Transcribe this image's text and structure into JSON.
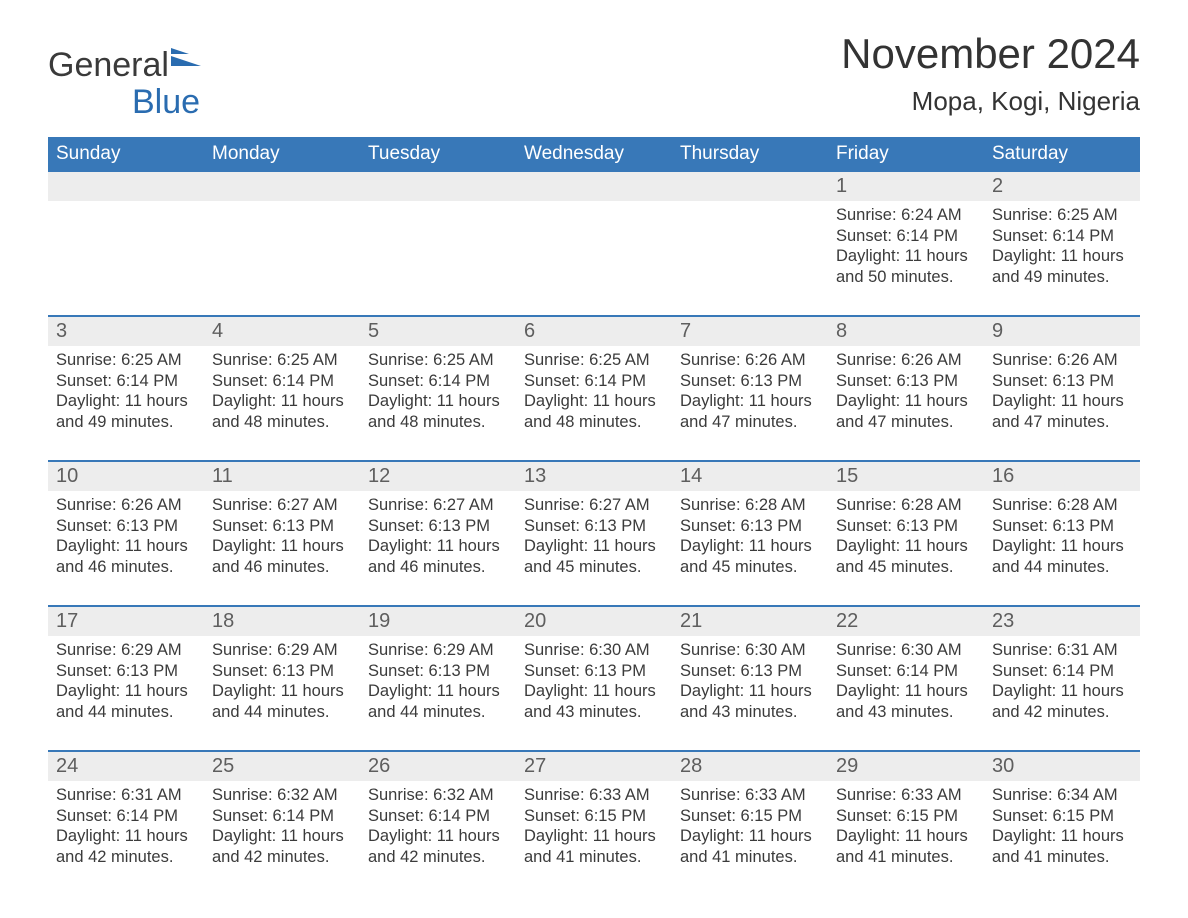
{
  "logo": {
    "word1": "General",
    "word2": "Blue",
    "accent_color": "#2a6cb0"
  },
  "title": "November 2024",
  "location": "Mopa, Kogi, Nigeria",
  "colors": {
    "header_bg": "#3878b8",
    "header_text": "#ffffff",
    "daynum_bg": "#ededed",
    "daynum_text": "#5e5e5e",
    "body_text": "#3b3b3b",
    "rule": "#3878b8",
    "page_bg": "#ffffff"
  },
  "font": {
    "family": "Arial",
    "title_size_pt": 32,
    "location_size_pt": 20,
    "weekday_size_pt": 14,
    "daynum_size_pt": 15,
    "body_size_pt": 12
  },
  "weekdays": [
    "Sunday",
    "Monday",
    "Tuesday",
    "Wednesday",
    "Thursday",
    "Friday",
    "Saturday"
  ],
  "weeks": [
    [
      null,
      null,
      null,
      null,
      null,
      {
        "n": "1",
        "sunrise": "Sunrise: 6:24 AM",
        "sunset": "Sunset: 6:14 PM",
        "day1": "Daylight: 11 hours",
        "day2": "and 50 minutes."
      },
      {
        "n": "2",
        "sunrise": "Sunrise: 6:25 AM",
        "sunset": "Sunset: 6:14 PM",
        "day1": "Daylight: 11 hours",
        "day2": "and 49 minutes."
      }
    ],
    [
      {
        "n": "3",
        "sunrise": "Sunrise: 6:25 AM",
        "sunset": "Sunset: 6:14 PM",
        "day1": "Daylight: 11 hours",
        "day2": "and 49 minutes."
      },
      {
        "n": "4",
        "sunrise": "Sunrise: 6:25 AM",
        "sunset": "Sunset: 6:14 PM",
        "day1": "Daylight: 11 hours",
        "day2": "and 48 minutes."
      },
      {
        "n": "5",
        "sunrise": "Sunrise: 6:25 AM",
        "sunset": "Sunset: 6:14 PM",
        "day1": "Daylight: 11 hours",
        "day2": "and 48 minutes."
      },
      {
        "n": "6",
        "sunrise": "Sunrise: 6:25 AM",
        "sunset": "Sunset: 6:14 PM",
        "day1": "Daylight: 11 hours",
        "day2": "and 48 minutes."
      },
      {
        "n": "7",
        "sunrise": "Sunrise: 6:26 AM",
        "sunset": "Sunset: 6:13 PM",
        "day1": "Daylight: 11 hours",
        "day2": "and 47 minutes."
      },
      {
        "n": "8",
        "sunrise": "Sunrise: 6:26 AM",
        "sunset": "Sunset: 6:13 PM",
        "day1": "Daylight: 11 hours",
        "day2": "and 47 minutes."
      },
      {
        "n": "9",
        "sunrise": "Sunrise: 6:26 AM",
        "sunset": "Sunset: 6:13 PM",
        "day1": "Daylight: 11 hours",
        "day2": "and 47 minutes."
      }
    ],
    [
      {
        "n": "10",
        "sunrise": "Sunrise: 6:26 AM",
        "sunset": "Sunset: 6:13 PM",
        "day1": "Daylight: 11 hours",
        "day2": "and 46 minutes."
      },
      {
        "n": "11",
        "sunrise": "Sunrise: 6:27 AM",
        "sunset": "Sunset: 6:13 PM",
        "day1": "Daylight: 11 hours",
        "day2": "and 46 minutes."
      },
      {
        "n": "12",
        "sunrise": "Sunrise: 6:27 AM",
        "sunset": "Sunset: 6:13 PM",
        "day1": "Daylight: 11 hours",
        "day2": "and 46 minutes."
      },
      {
        "n": "13",
        "sunrise": "Sunrise: 6:27 AM",
        "sunset": "Sunset: 6:13 PM",
        "day1": "Daylight: 11 hours",
        "day2": "and 45 minutes."
      },
      {
        "n": "14",
        "sunrise": "Sunrise: 6:28 AM",
        "sunset": "Sunset: 6:13 PM",
        "day1": "Daylight: 11 hours",
        "day2": "and 45 minutes."
      },
      {
        "n": "15",
        "sunrise": "Sunrise: 6:28 AM",
        "sunset": "Sunset: 6:13 PM",
        "day1": "Daylight: 11 hours",
        "day2": "and 45 minutes."
      },
      {
        "n": "16",
        "sunrise": "Sunrise: 6:28 AM",
        "sunset": "Sunset: 6:13 PM",
        "day1": "Daylight: 11 hours",
        "day2": "and 44 minutes."
      }
    ],
    [
      {
        "n": "17",
        "sunrise": "Sunrise: 6:29 AM",
        "sunset": "Sunset: 6:13 PM",
        "day1": "Daylight: 11 hours",
        "day2": "and 44 minutes."
      },
      {
        "n": "18",
        "sunrise": "Sunrise: 6:29 AM",
        "sunset": "Sunset: 6:13 PM",
        "day1": "Daylight: 11 hours",
        "day2": "and 44 minutes."
      },
      {
        "n": "19",
        "sunrise": "Sunrise: 6:29 AM",
        "sunset": "Sunset: 6:13 PM",
        "day1": "Daylight: 11 hours",
        "day2": "and 44 minutes."
      },
      {
        "n": "20",
        "sunrise": "Sunrise: 6:30 AM",
        "sunset": "Sunset: 6:13 PM",
        "day1": "Daylight: 11 hours",
        "day2": "and 43 minutes."
      },
      {
        "n": "21",
        "sunrise": "Sunrise: 6:30 AM",
        "sunset": "Sunset: 6:13 PM",
        "day1": "Daylight: 11 hours",
        "day2": "and 43 minutes."
      },
      {
        "n": "22",
        "sunrise": "Sunrise: 6:30 AM",
        "sunset": "Sunset: 6:14 PM",
        "day1": "Daylight: 11 hours",
        "day2": "and 43 minutes."
      },
      {
        "n": "23",
        "sunrise": "Sunrise: 6:31 AM",
        "sunset": "Sunset: 6:14 PM",
        "day1": "Daylight: 11 hours",
        "day2": "and 42 minutes."
      }
    ],
    [
      {
        "n": "24",
        "sunrise": "Sunrise: 6:31 AM",
        "sunset": "Sunset: 6:14 PM",
        "day1": "Daylight: 11 hours",
        "day2": "and 42 minutes."
      },
      {
        "n": "25",
        "sunrise": "Sunrise: 6:32 AM",
        "sunset": "Sunset: 6:14 PM",
        "day1": "Daylight: 11 hours",
        "day2": "and 42 minutes."
      },
      {
        "n": "26",
        "sunrise": "Sunrise: 6:32 AM",
        "sunset": "Sunset: 6:14 PM",
        "day1": "Daylight: 11 hours",
        "day2": "and 42 minutes."
      },
      {
        "n": "27",
        "sunrise": "Sunrise: 6:33 AM",
        "sunset": "Sunset: 6:15 PM",
        "day1": "Daylight: 11 hours",
        "day2": "and 41 minutes."
      },
      {
        "n": "28",
        "sunrise": "Sunrise: 6:33 AM",
        "sunset": "Sunset: 6:15 PM",
        "day1": "Daylight: 11 hours",
        "day2": "and 41 minutes."
      },
      {
        "n": "29",
        "sunrise": "Sunrise: 6:33 AM",
        "sunset": "Sunset: 6:15 PM",
        "day1": "Daylight: 11 hours",
        "day2": "and 41 minutes."
      },
      {
        "n": "30",
        "sunrise": "Sunrise: 6:34 AM",
        "sunset": "Sunset: 6:15 PM",
        "day1": "Daylight: 11 hours",
        "day2": "and 41 minutes."
      }
    ]
  ]
}
